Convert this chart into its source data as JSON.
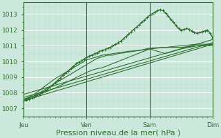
{
  "title": "",
  "xlabel": "Pression niveau de la mer( hPa )",
  "ylabel": "",
  "bg_color": "#cce8dc",
  "grid_color_major": "#ffffff",
  "grid_color_minor": "#b8ddd0",
  "line_color": "#2d6e2d",
  "marker_color": "#2d6e2d",
  "xlim": [
    0,
    72
  ],
  "ylim": [
    1006.5,
    1013.8
  ],
  "yticks": [
    1007,
    1008,
    1009,
    1010,
    1011,
    1012,
    1013
  ],
  "xtick_positions": [
    0,
    24,
    48,
    72
  ],
  "xtick_labels": [
    "Jeu",
    "Ven",
    "Sam",
    "Dim"
  ],
  "xlabel_fontsize": 8,
  "tick_fontsize": 6.5,
  "lines": [
    {
      "x": [
        0,
        72
      ],
      "y": [
        1007.5,
        1011.1
      ],
      "marker": false,
      "linewidth": 0.8
    },
    {
      "x": [
        0,
        72
      ],
      "y": [
        1007.7,
        1011.2
      ],
      "marker": false,
      "linewidth": 0.8
    },
    {
      "x": [
        0,
        72
      ],
      "y": [
        1007.9,
        1011.4
      ],
      "marker": false,
      "linewidth": 0.8
    },
    {
      "x": [
        0,
        6,
        12,
        18,
        24,
        27,
        30,
        33,
        36,
        42,
        48,
        54,
        60,
        66,
        72
      ],
      "y": [
        1007.6,
        1007.9,
        1008.3,
        1008.8,
        1009.3,
        1009.5,
        1009.6,
        1009.8,
        1010.0,
        1010.4,
        1010.8,
        1010.5,
        1010.8,
        1011.0,
        1011.1
      ],
      "marker": false,
      "linewidth": 0.8
    },
    {
      "x": [
        0,
        4,
        8,
        12,
        16,
        20,
        24,
        26,
        28,
        30,
        32,
        34,
        36,
        40,
        44,
        48,
        54,
        60,
        66,
        72
      ],
      "y": [
        1007.5,
        1007.8,
        1008.2,
        1008.6,
        1009.0,
        1009.4,
        1009.8,
        1010.0,
        1010.2,
        1010.3,
        1010.4,
        1010.4,
        1010.5,
        1010.6,
        1010.7,
        1010.8,
        1010.9,
        1010.9,
        1011.0,
        1011.0
      ],
      "marker": false,
      "linewidth": 0.8
    },
    {
      "x": [
        0,
        4,
        8,
        12,
        16,
        20,
        22,
        24,
        26,
        28,
        30,
        32,
        34,
        36,
        40,
        44,
        48,
        54,
        60,
        66,
        72
      ],
      "y": [
        1007.5,
        1007.9,
        1008.4,
        1008.9,
        1009.3,
        1009.7,
        1009.9,
        1010.1,
        1010.2,
        1010.3,
        1010.4,
        1010.45,
        1010.5,
        1010.55,
        1010.65,
        1010.7,
        1010.85,
        1010.9,
        1011.0,
        1011.1,
        1011.1
      ],
      "marker": false,
      "linewidth": 0.8
    },
    {
      "x": [
        0,
        1,
        2,
        3,
        4,
        5,
        6,
        7,
        8,
        9,
        10,
        11,
        12,
        13,
        14,
        15,
        16,
        17,
        18,
        19,
        20,
        21,
        22,
        23,
        24,
        25,
        26,
        27,
        28,
        29,
        30,
        31,
        32,
        33,
        34,
        35,
        36,
        37,
        38,
        39,
        40,
        41,
        42,
        43,
        44,
        45,
        46,
        47,
        48,
        49,
        50,
        51,
        52,
        53,
        54,
        55,
        56,
        57,
        58,
        59,
        60,
        61,
        62,
        63,
        64,
        65,
        66,
        67,
        68,
        69,
        70,
        71,
        72
      ],
      "y": [
        1007.5,
        1007.55,
        1007.6,
        1007.65,
        1007.7,
        1007.8,
        1007.9,
        1008.0,
        1008.1,
        1008.2,
        1008.35,
        1008.5,
        1008.65,
        1008.8,
        1008.95,
        1009.1,
        1009.25,
        1009.4,
        1009.55,
        1009.7,
        1009.85,
        1009.95,
        1010.05,
        1010.15,
        1010.25,
        1010.35,
        1010.4,
        1010.5,
        1010.55,
        1010.65,
        1010.7,
        1010.75,
        1010.85,
        1010.9,
        1011.0,
        1011.1,
        1011.2,
        1011.3,
        1011.45,
        1011.6,
        1011.75,
        1011.9,
        1012.05,
        1012.2,
        1012.35,
        1012.5,
        1012.65,
        1012.8,
        1012.95,
        1013.05,
        1013.15,
        1013.25,
        1013.3,
        1013.25,
        1013.1,
        1012.9,
        1012.7,
        1012.5,
        1012.3,
        1012.1,
        1012.0,
        1012.05,
        1012.1,
        1012.05,
        1011.95,
        1011.85,
        1011.8,
        1011.85,
        1011.9,
        1011.95,
        1012.0,
        1011.8,
        1011.5
      ],
      "marker": true,
      "linewidth": 1.0
    }
  ],
  "vline_positions": [
    0,
    24,
    48,
    72
  ],
  "vline_color": "#2d6e2d"
}
